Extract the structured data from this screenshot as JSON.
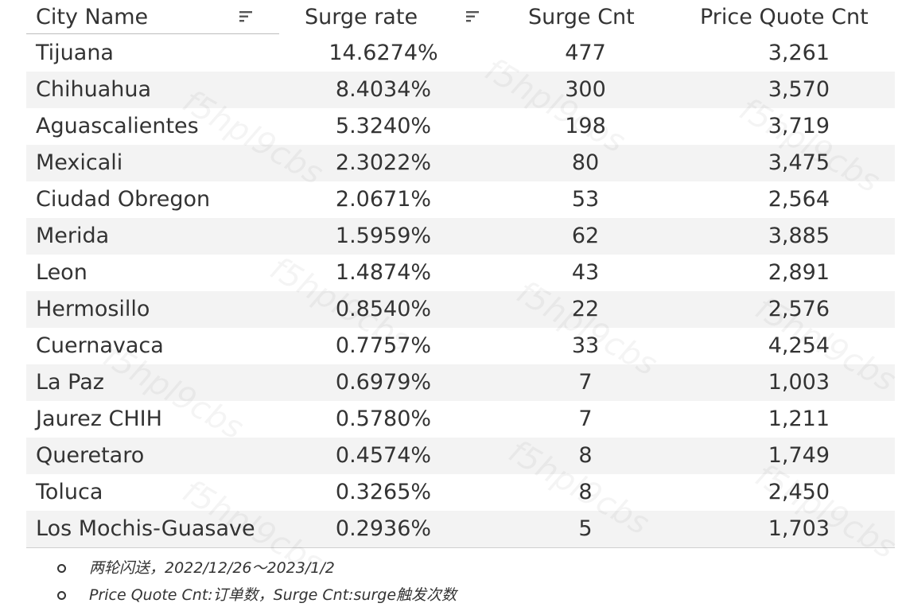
{
  "table": {
    "headers": {
      "city": "City Name",
      "rate": "Surge rate",
      "cnt": "Surge Cnt",
      "pq": "Price Quote Cnt"
    },
    "sort_icon": "sort-descending-icon",
    "rows": [
      {
        "city": "Tijuana",
        "rate": "14.6274%",
        "cnt": "477",
        "pq": "3,261"
      },
      {
        "city": "Chihuahua",
        "rate": "8.4034%",
        "cnt": "300",
        "pq": "3,570"
      },
      {
        "city": "Aguascalientes",
        "rate": "5.3240%",
        "cnt": "198",
        "pq": "3,719"
      },
      {
        "city": "Mexicali",
        "rate": "2.3022%",
        "cnt": "80",
        "pq": "3,475"
      },
      {
        "city": "Ciudad Obregon",
        "rate": "2.0671%",
        "cnt": "53",
        "pq": "2,564"
      },
      {
        "city": "Merida",
        "rate": "1.5959%",
        "cnt": "62",
        "pq": "3,885"
      },
      {
        "city": "Leon",
        "rate": "1.4874%",
        "cnt": "43",
        "pq": "2,891"
      },
      {
        "city": "Hermosillo",
        "rate": "0.8540%",
        "cnt": "22",
        "pq": "2,576"
      },
      {
        "city": "Cuernavaca",
        "rate": "0.7757%",
        "cnt": "33",
        "pq": "4,254"
      },
      {
        "city": "La Paz",
        "rate": "0.6979%",
        "cnt": "7",
        "pq": "1,003"
      },
      {
        "city": "Jaurez CHIH",
        "rate": "0.5780%",
        "cnt": "7",
        "pq": "1,211"
      },
      {
        "city": "Queretaro",
        "rate": "0.4574%",
        "cnt": "8",
        "pq": "1,749"
      },
      {
        "city": "Toluca",
        "rate": "0.3265%",
        "cnt": "8",
        "pq": "2,450"
      },
      {
        "city": "Los Mochis-Guasave",
        "rate": "0.2936%",
        "cnt": "5",
        "pq": "1,703"
      }
    ]
  },
  "notes": [
    "两轮闪送，2022/12/26～2023/1/2",
    "Price Quote Cnt:订单数，Surge Cnt:surge触发次数"
  ],
  "watermark": "f5hpl9cbs",
  "colors": {
    "alt_row": "#f3f3f3",
    "text": "#333333",
    "border": "#cfcfcf"
  }
}
